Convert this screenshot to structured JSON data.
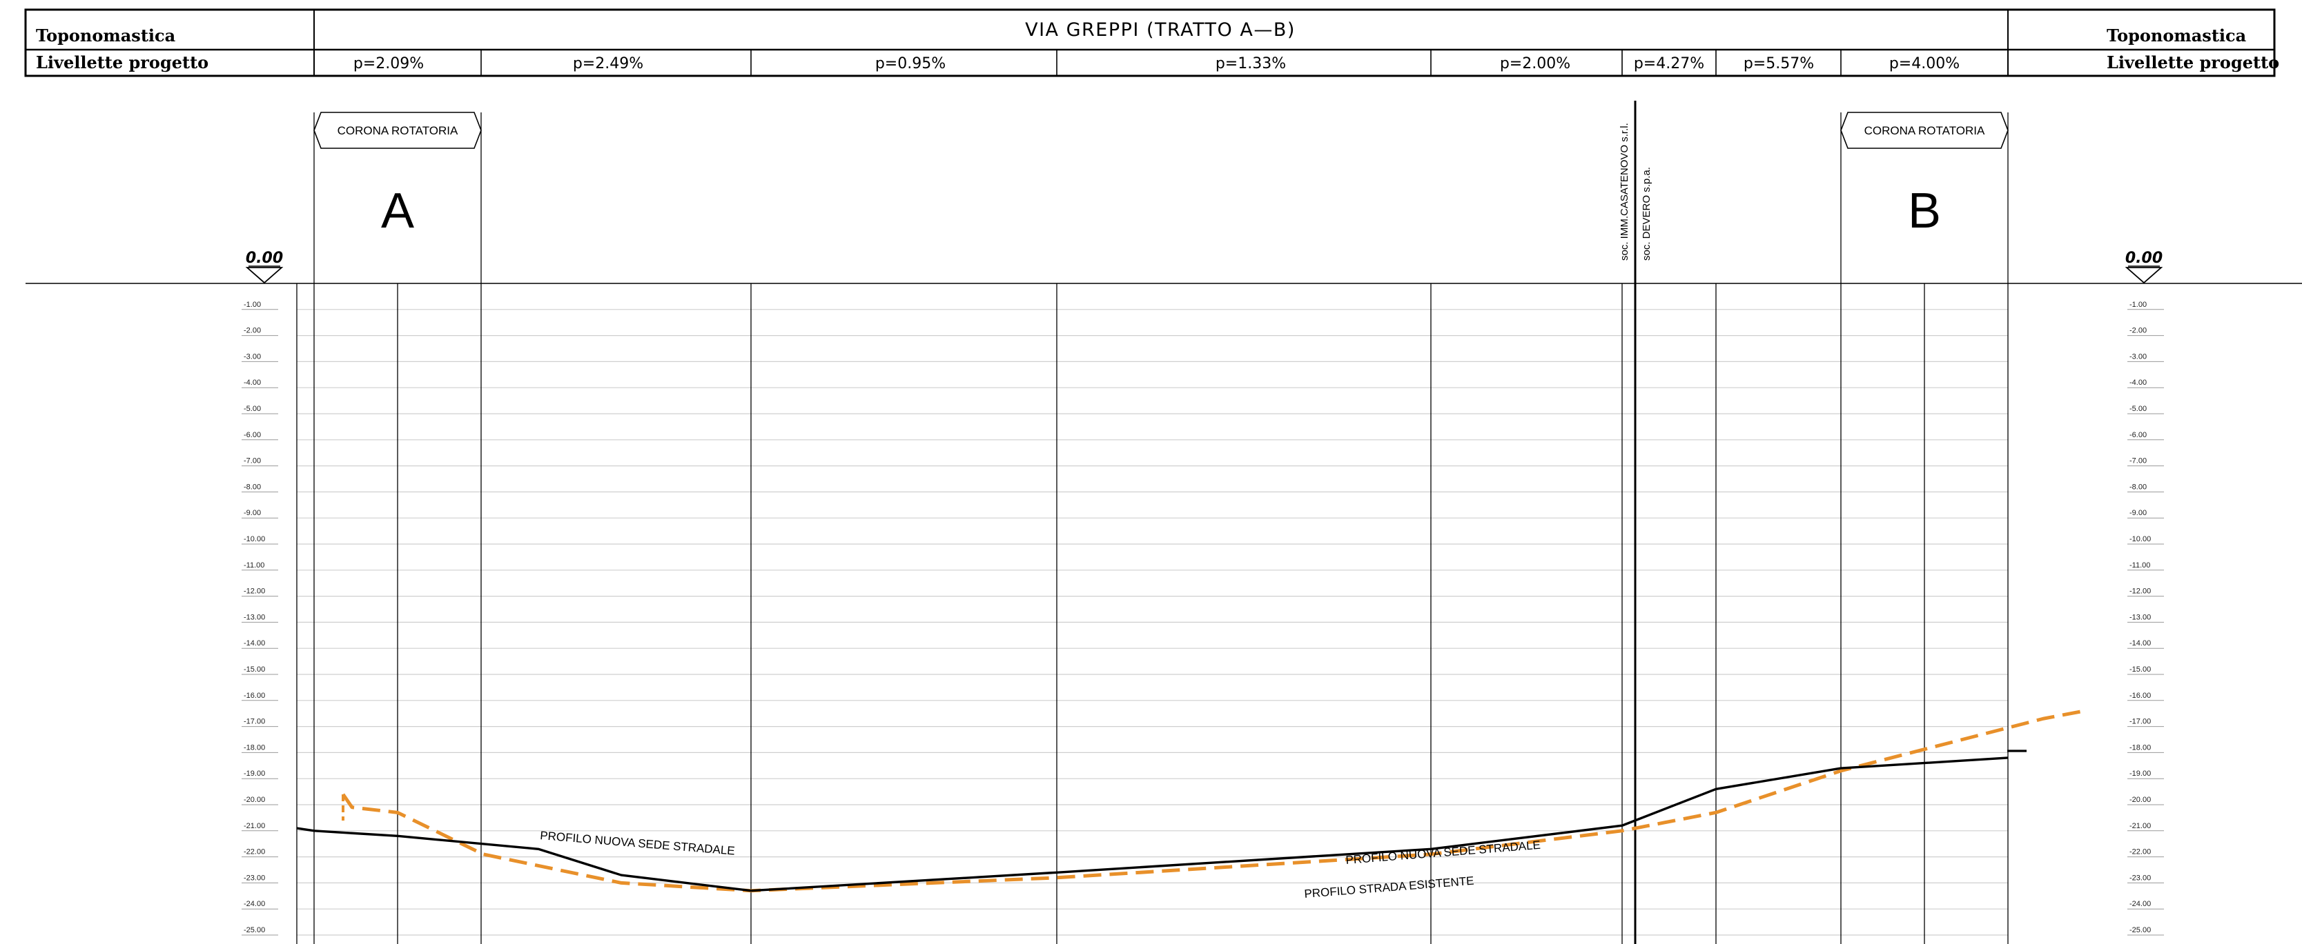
{
  "header": {
    "row1_left": "Toponomastica",
    "row1_right": "Toponomastica",
    "title": "VIA GREPPI (TRATTO A—B)",
    "row2_left": "Livellette progetto",
    "row2_right": "Livellette progetto",
    "slopes": [
      "p=2.09%",
      "p=2.49%",
      "p=0.95%",
      "p=1.33%",
      "p=2.00%",
      "p=4.27%",
      "p=5.57%",
      "p=4.00%"
    ]
  },
  "markers": {
    "left_label": "CORONA ROTATORIA",
    "left_letter": "A",
    "right_label": "CORONA ROTATORIA",
    "right_letter": "B",
    "property_1": "soc. IMM.CASATENOVO s.r.l.",
    "property_2": "soc. DEVERO s.p.a.",
    "datum_left": "0.00",
    "datum_right": "0.00"
  },
  "depth_scale": {
    "labels": [
      "-1.00",
      "-2.00",
      "-3.00",
      "-4.00",
      "-5.00",
      "-6.00",
      "-7.00",
      "-8.00",
      "-9.00",
      "-10.00",
      "-11.00",
      "-12.00",
      "-13.00",
      "-14.00",
      "-15.00",
      "-16.00",
      "-17.00",
      "-18.00",
      "-19.00",
      "-20.00",
      "-21.00",
      "-22.00",
      "-23.00",
      "-24.00",
      "-25.00"
    ],
    "levels": [
      -1,
      -2,
      -3,
      -4,
      -5,
      -6,
      -7,
      -8,
      -9,
      -10,
      -11,
      -12,
      -13,
      -14,
      -15,
      -16,
      -17,
      -18,
      -19,
      -20,
      -21,
      -22,
      -23,
      -24,
      -25
    ]
  },
  "profiles": {
    "new_label_1": "PROFILO NUOVA SEDE STRADALE",
    "new_label_2": "PROFILO NUOVA SEDE STRADALE",
    "existing_label": "PROFILO STRADA ESISTENTE",
    "new_color": "#000000",
    "existing_color": "#e8902a",
    "new_profile": [
      [
        -20.9
      ],
      [
        -21.0
      ],
      [
        -21.2
      ],
      [
        -21.7
      ],
      [
        -22.7
      ],
      [
        -23.3
      ],
      [
        -22.6
      ],
      [
        -21.7
      ],
      [
        -20.8
      ],
      [
        -19.4
      ],
      [
        -18.6
      ],
      [
        -18.2
      ]
    ],
    "existing_profile": [
      [
        -19.6
      ],
      [
        -20.1
      ],
      [
        -20.3
      ],
      [
        -21.9
      ],
      [
        -23.0
      ],
      [
        -23.3
      ],
      [
        -22.8
      ],
      [
        -21.9
      ],
      [
        -21.0
      ],
      [
        -20.3
      ],
      [
        -18.7
      ],
      [
        -16.7
      ],
      [
        -16.4
      ]
    ]
  }
}
